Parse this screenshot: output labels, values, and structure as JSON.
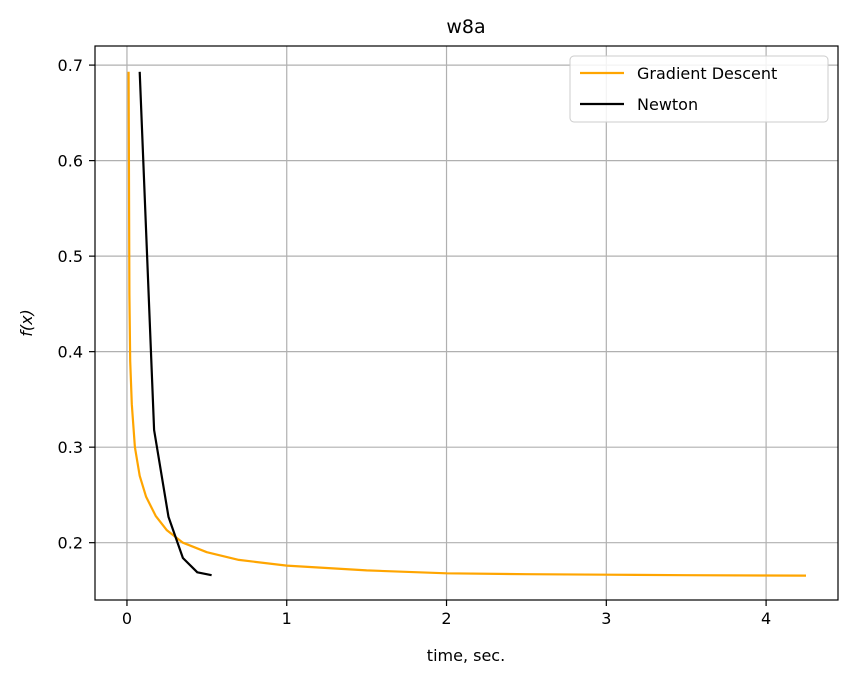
{
  "chart_data": {
    "type": "line",
    "title": "w8a",
    "xlabel": "time, sec.",
    "ylabel": "f(x)",
    "xlim": [
      -0.2,
      4.45
    ],
    "ylim": [
      0.14,
      0.72
    ],
    "xticks": [
      0,
      1,
      2,
      3,
      4
    ],
    "yticks": [
      0.2,
      0.3,
      0.4,
      0.5,
      0.6,
      0.7
    ],
    "grid": true,
    "legend_position": "top-right",
    "series": [
      {
        "name": "Gradient Descent",
        "color": "#ffa500",
        "x": [
          0.01,
          0.015,
          0.02,
          0.03,
          0.05,
          0.08,
          0.12,
          0.18,
          0.25,
          0.35,
          0.5,
          0.7,
          1.0,
          1.5,
          2.0,
          2.5,
          3.0,
          3.5,
          4.0,
          4.25
        ],
        "y": [
          0.693,
          0.46,
          0.39,
          0.345,
          0.3,
          0.27,
          0.248,
          0.228,
          0.213,
          0.2,
          0.19,
          0.182,
          0.176,
          0.171,
          0.168,
          0.167,
          0.1665,
          0.166,
          0.1657,
          0.1655
        ]
      },
      {
        "name": "Newton",
        "color": "#000000",
        "x": [
          0.08,
          0.17,
          0.26,
          0.35,
          0.44,
          0.53
        ],
        "y": [
          0.693,
          0.318,
          0.227,
          0.184,
          0.169,
          0.166
        ]
      }
    ]
  }
}
